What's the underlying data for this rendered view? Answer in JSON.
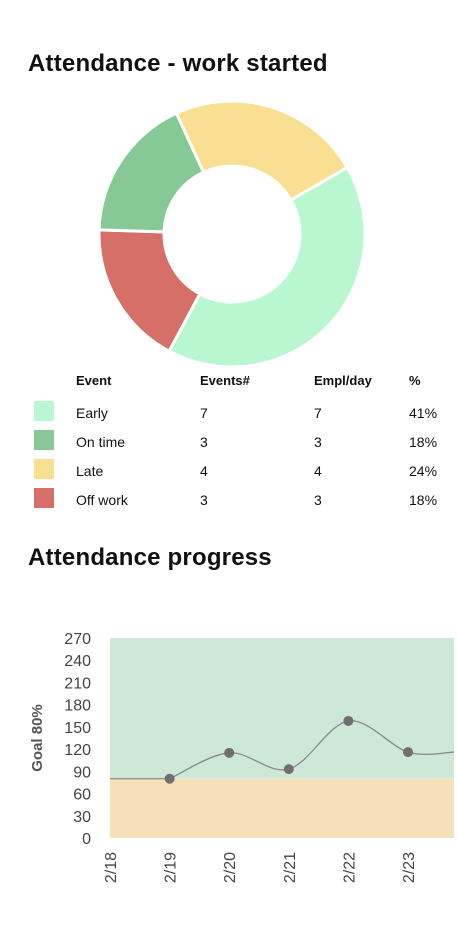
{
  "section1": {
    "title": "Attendance - work started"
  },
  "section2": {
    "title": "Attendance progress"
  },
  "legend": {
    "headers": [
      "Event",
      "Events#",
      "Empl/day",
      "%"
    ],
    "rows": [
      {
        "event": "Early",
        "events": "7",
        "empl": "7",
        "pct": "41%"
      },
      {
        "event": "On time",
        "events": "3",
        "empl": "3",
        "pct": "18%"
      },
      {
        "event": "Late",
        "events": "4",
        "empl": "4",
        "pct": "24%"
      },
      {
        "event": "Off work",
        "events": "3",
        "empl": "3",
        "pct": "18%"
      }
    ]
  },
  "colors": {
    "early": "#b9f7d1",
    "on_time": "#86c996",
    "late": "#f9df92",
    "off_work": "#d56f68",
    "goal_above": "#cde8d6",
    "goal_below": "#f6e0b9",
    "line": "#888888",
    "point": "#6f6f6f"
  },
  "chart_data": [
    {
      "type": "pie",
      "subtype": "donut",
      "title": "Attendance - work started",
      "labels": [
        "Early",
        "On time",
        "Late",
        "Off work"
      ],
      "values": [
        7,
        3,
        4,
        3
      ]
    },
    {
      "type": "line",
      "title": "Attendance progress",
      "ylabel": "Goal 80%",
      "xlabel": "",
      "x": [
        "2/18",
        "2/19",
        "2/20",
        "2/21",
        "2/22",
        "2/23"
      ],
      "ylim": [
        0,
        270
      ],
      "yticks": [
        0,
        30,
        60,
        90,
        120,
        150,
        180,
        210,
        240,
        270
      ],
      "series": [
        {
          "values": [
            null,
            80,
            115,
            93,
            158,
            116
          ]
        }
      ],
      "goal_line": 80,
      "smooth": true,
      "grid": false
    }
  ]
}
